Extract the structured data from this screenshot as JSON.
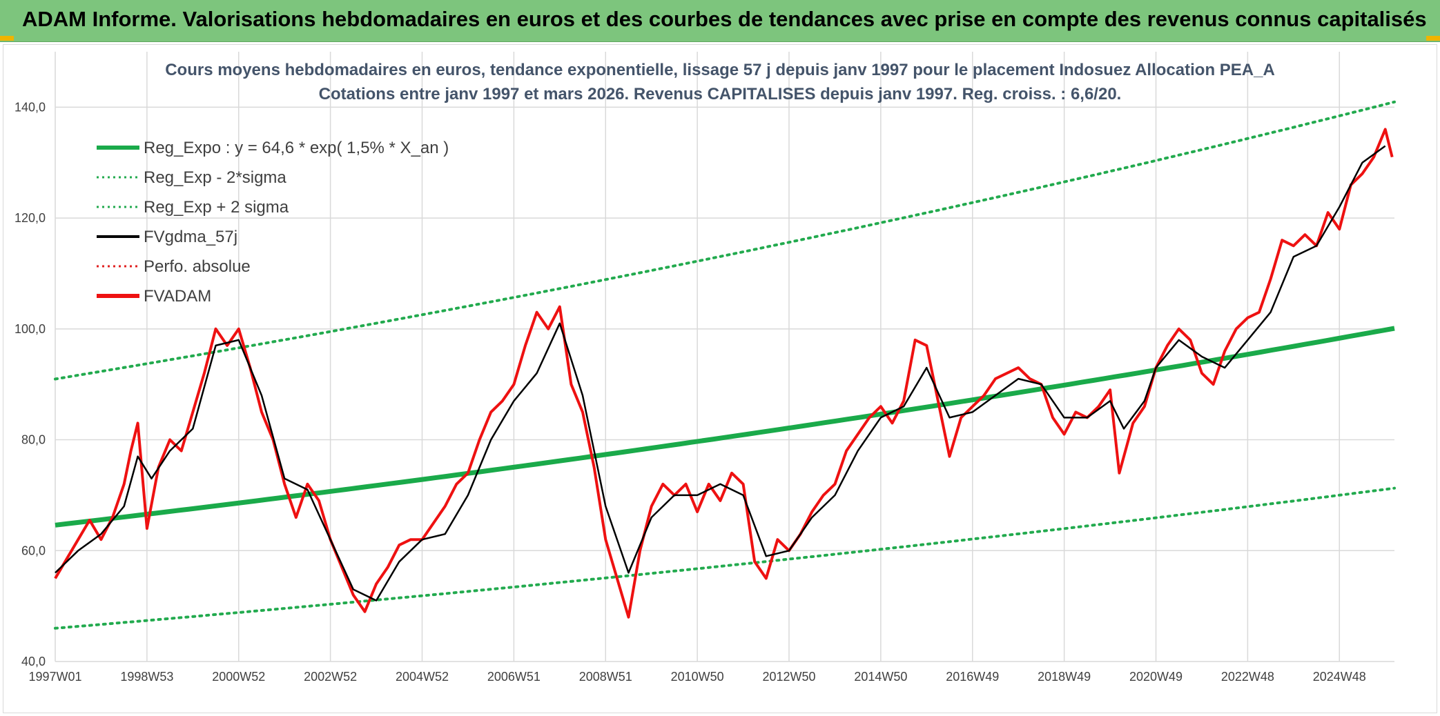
{
  "header": {
    "title": "ADAM Informe. Valorisations hebdomadaires en euros et des courbes de tendances avec prise en compte des revenus connus capitalisés"
  },
  "colors": {
    "header_bg": "#7dc57d",
    "corner_accent": "#f0b400",
    "reg_expo": "#1aaa4a",
    "reg_bands": "#22aa4e",
    "fvgdma": "#000000",
    "perfo": "#e02020",
    "fvadam": "#ee1111",
    "gridline": "#d9d9d9"
  },
  "chart_data": {
    "type": "line",
    "title_lines": [
      "Cours moyens hebdomadaires en euros, tendance exponentielle, lissage 57 j depuis janv 1997 pour le placement Indosuez Allocation PEA_A",
      "Cotations entre janv 1997 et mars 2026.  Revenus CAPITALISES depuis janv 1997. Reg. croiss. : 6,6/20."
    ],
    "xlabel": "",
    "ylabel": "",
    "ylim": [
      40,
      150
    ],
    "xlim": [
      1997.0,
      2026.2
    ],
    "grid": true,
    "legend_position": "top-left",
    "y_ticks": [
      "40,0",
      "60,0",
      "80,0",
      "100,0",
      "120,0",
      "140,0"
    ],
    "y_tick_values": [
      40,
      60,
      80,
      100,
      120,
      140
    ],
    "x_ticks": [
      "1997W01",
      "1998W53",
      "2000W52",
      "2002W52",
      "2004W52",
      "2006W51",
      "2008W51",
      "2010W50",
      "2012W50",
      "2014W50",
      "2016W49",
      "2018W49",
      "2020W49",
      "2022W48",
      "2024W48"
    ],
    "x_tick_values": [
      1997.0,
      1999.0,
      2001.0,
      2003.0,
      2005.0,
      2007.0,
      2009.0,
      2011.0,
      2013.0,
      2015.0,
      2017.0,
      2019.0,
      2021.0,
      2023.0,
      2025.0
    ],
    "legend": [
      {
        "label": "Reg_Expo : y = 64,6 * exp( 1,5% *  X_an )",
        "style": "solid-thick",
        "color": "#1aaa4a"
      },
      {
        "label": "Reg_Exp - 2*sigma",
        "style": "dotted",
        "color": "#22aa4e"
      },
      {
        "label": "Reg_Exp + 2 sigma",
        "style": "dotted",
        "color": "#22aa4e"
      },
      {
        "label": "FVgdma_57j",
        "style": "solid",
        "color": "#000000"
      },
      {
        "label": "Perfo. absolue",
        "style": "dotted",
        "color": "#e02020"
      },
      {
        "label": "FVADAM",
        "style": "solid-thick",
        "color": "#ee1111"
      }
    ],
    "regression": {
      "a": 64.6,
      "rate": 0.015,
      "lower_factor": 0.712,
      "upper_factor": 1.408
    },
    "series": [
      {
        "name": "FVADAM",
        "x": [
          1997.0,
          1997.25,
          1997.5,
          1997.75,
          1998.0,
          1998.25,
          1998.5,
          1998.65,
          1998.8,
          1999.0,
          1999.25,
          1999.5,
          1999.75,
          2000.0,
          2000.25,
          2000.5,
          2000.75,
          2001.0,
          2001.25,
          2001.5,
          2001.75,
          2002.0,
          2002.25,
          2002.5,
          2002.75,
          2003.0,
          2003.25,
          2003.5,
          2003.75,
          2004.0,
          2004.25,
          2004.5,
          2004.75,
          2005.0,
          2005.25,
          2005.5,
          2005.75,
          2006.0,
          2006.25,
          2006.5,
          2006.75,
          2007.0,
          2007.25,
          2007.5,
          2007.75,
          2008.0,
          2008.25,
          2008.5,
          2008.75,
          2009.0,
          2009.25,
          2009.5,
          2009.75,
          2010.0,
          2010.25,
          2010.5,
          2010.75,
          2011.0,
          2011.25,
          2011.5,
          2011.75,
          2012.0,
          2012.25,
          2012.5,
          2012.75,
          2013.0,
          2013.25,
          2013.5,
          2013.75,
          2014.0,
          2014.25,
          2014.5,
          2014.75,
          2015.0,
          2015.25,
          2015.5,
          2015.75,
          2016.0,
          2016.25,
          2016.5,
          2016.75,
          2017.0,
          2017.25,
          2017.5,
          2017.75,
          2018.0,
          2018.25,
          2018.5,
          2018.75,
          2019.0,
          2019.25,
          2019.5,
          2019.75,
          2020.0,
          2020.2,
          2020.5,
          2020.75,
          2021.0,
          2021.25,
          2021.5,
          2021.75,
          2022.0,
          2022.25,
          2022.5,
          2022.75,
          2023.0,
          2023.25,
          2023.5,
          2023.75,
          2024.0,
          2024.25,
          2024.5,
          2024.75,
          2025.0,
          2025.25,
          2025.5,
          2025.75,
          2026.0,
          2026.15
        ],
        "y": [
          55.0,
          58.5,
          62.0,
          65.5,
          62.0,
          66.0,
          72.0,
          78.0,
          83.0,
          64.0,
          75.0,
          80.0,
          78.0,
          85.0,
          92.0,
          100.0,
          97.0,
          100.0,
          93.0,
          85.0,
          80.0,
          72.0,
          66.0,
          72.0,
          69.0,
          62.0,
          57.0,
          52.0,
          49.0,
          54.0,
          57.0,
          61.0,
          62.0,
          62.0,
          65.0,
          68.0,
          72.0,
          74.0,
          80.0,
          85.0,
          87.0,
          90.0,
          97.0,
          103.0,
          100.0,
          104.0,
          90.0,
          85.0,
          75.0,
          62.0,
          55.0,
          48.0,
          60.0,
          68.0,
          72.0,
          70.0,
          72.0,
          67.0,
          72.0,
          69.0,
          74.0,
          72.0,
          58.0,
          55.0,
          62.0,
          60.0,
          63.0,
          67.0,
          70.0,
          72.0,
          78.0,
          81.0,
          84.0,
          86.0,
          83.0,
          87.0,
          98.0,
          97.0,
          87.0,
          77.0,
          84.0,
          86.0,
          88.0,
          91.0,
          92.0,
          93.0,
          91.0,
          90.0,
          84.0,
          81.0,
          85.0,
          84.0,
          86.0,
          89.0,
          74.0,
          83.0,
          86.0,
          93.0,
          97.0,
          100.0,
          98.0,
          92.0,
          90.0,
          96.0,
          100.0,
          102.0,
          103.0,
          109.0,
          116.0,
          115.0,
          117.0,
          115.0,
          121.0,
          118.0,
          126.0,
          128.0,
          131.0,
          136.0,
          131.0
        ]
      },
      {
        "name": "FVgdma_57j",
        "x": [
          1997.0,
          1997.5,
          1998.0,
          1998.5,
          1998.8,
          1999.1,
          1999.5,
          2000.0,
          2000.5,
          2001.0,
          2001.5,
          2002.0,
          2002.5,
          2003.0,
          2003.5,
          2004.0,
          2004.5,
          2005.0,
          2005.5,
          2006.0,
          2006.5,
          2007.0,
          2007.5,
          2008.0,
          2008.5,
          2009.0,
          2009.5,
          2010.0,
          2010.5,
          2011.0,
          2011.5,
          2012.0,
          2012.5,
          2013.0,
          2013.5,
          2014.0,
          2014.5,
          2015.0,
          2015.5,
          2016.0,
          2016.5,
          2017.0,
          2017.5,
          2018.0,
          2018.5,
          2019.0,
          2019.5,
          2020.0,
          2020.3,
          2020.75,
          2021.0,
          2021.5,
          2022.0,
          2022.5,
          2023.0,
          2023.5,
          2024.0,
          2024.5,
          2025.0,
          2025.5,
          2026.0
        ],
        "y": [
          56.0,
          60.0,
          63.0,
          68.0,
          77.0,
          73.0,
          78.0,
          82.0,
          97.0,
          98.0,
          88.0,
          73.0,
          71.0,
          62.0,
          53.0,
          51.0,
          58.0,
          62.0,
          63.0,
          70.0,
          80.0,
          87.0,
          92.0,
          101.0,
          88.0,
          68.0,
          56.0,
          66.0,
          70.0,
          70.0,
          72.0,
          70.0,
          59.0,
          60.0,
          66.0,
          70.0,
          78.0,
          84.0,
          86.0,
          93.0,
          84.0,
          85.0,
          88.0,
          91.0,
          90.0,
          84.0,
          84.0,
          87.0,
          82.0,
          87.0,
          93.0,
          98.0,
          95.0,
          93.0,
          98.0,
          103.0,
          113.0,
          115.0,
          122.0,
          130.0,
          133.0
        ]
      }
    ]
  }
}
